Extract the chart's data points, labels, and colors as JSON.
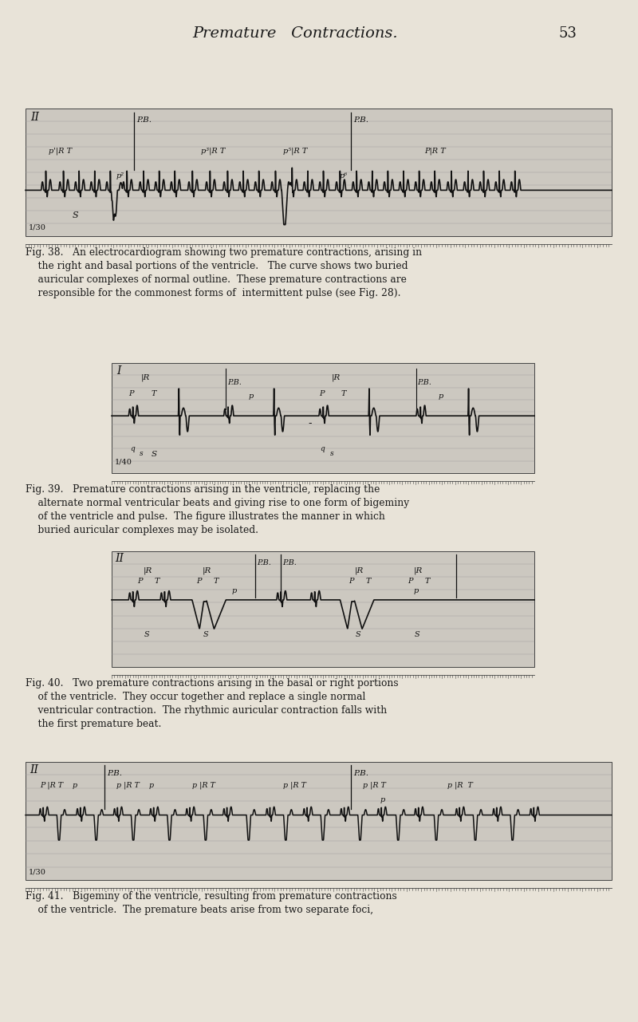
{
  "page_bg": "#e8e3d8",
  "title": "Premature   Contractions.",
  "page_num": "53",
  "title_fontsize": 14,
  "caption38": "Fig. 38.   An electrocardiogram showing two premature contractions, arising in\n    the right and basal portions of the ventricle.   The curve shows two buried\n    auricular complexes of normal outline.  These premature contractions are\n    responsible for the commonest forms of  intermittent pulse (see Fig. 28).",
  "caption39": "Fig. 39.   Premature contractions arising in the ventricle, replacing the\n    alternate normal ventricular beats and giving rise to one form of bigeminy\n    of the ventricle and pulse.  The figure illustrates the manner in which\n    buried auricular complexes may be isolated.",
  "caption40": "Fig. 40.   Two premature contractions arising in the basal or right portions\n    of the ventricle.  They occur together and replace a single normal\n    ventricular contraction.  The rhythmic auricular contraction falls with\n    the first premature beat.",
  "caption41": "Fig. 41.   Bigeminy of the ventricle, resulting from premature contractions\n    of the ventricle.  The premature beats arise from two separate foci,",
  "ecg_bg": "#ccc8c0",
  "ecg_line_color": "#111111",
  "grid_color": "#999999"
}
